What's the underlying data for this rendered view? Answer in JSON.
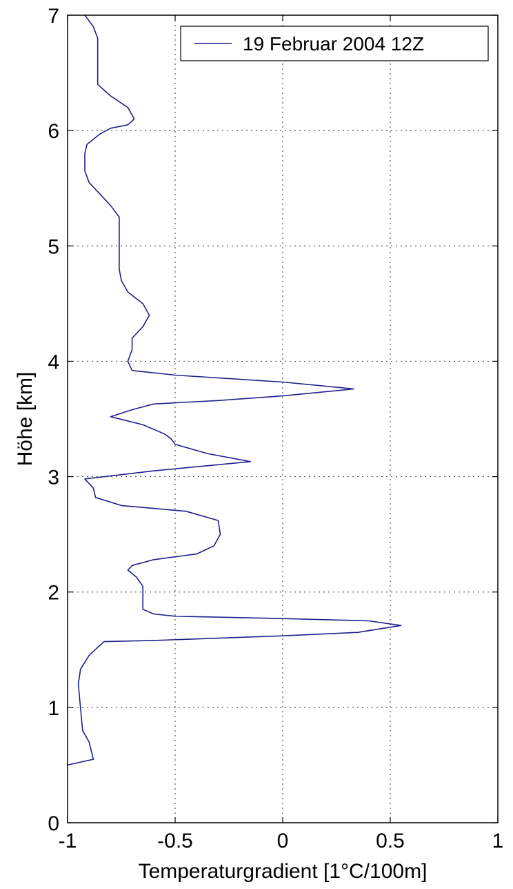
{
  "chart_data": {
    "type": "line",
    "title": "",
    "xlabel": "Temperaturgradient [1°C/100m]",
    "ylabel": "Höhe [km]",
    "xlim": [
      -1,
      1
    ],
    "ylim": [
      0,
      7
    ],
    "xticks": [
      -1,
      -0.5,
      0,
      0.5,
      1
    ],
    "xtick_labels": [
      "-1",
      "-0.5",
      "0",
      "0.5",
      "1"
    ],
    "yticks": [
      0,
      1,
      2,
      3,
      4,
      5,
      6,
      7
    ],
    "ytick_labels": [
      "0",
      "1",
      "2",
      "3",
      "4",
      "5",
      "6",
      "7"
    ],
    "grid": true,
    "legend_position": "top-right",
    "series": [
      {
        "name": "19 Februar 2004 12Z",
        "color": "#1e1e8c",
        "points": [
          [
            -1.0,
            0.5
          ],
          [
            -0.88,
            0.55
          ],
          [
            -0.9,
            0.7
          ],
          [
            -0.93,
            0.8
          ],
          [
            -0.94,
            1.0
          ],
          [
            -0.95,
            1.2
          ],
          [
            -0.94,
            1.33
          ],
          [
            -0.9,
            1.45
          ],
          [
            -0.86,
            1.52
          ],
          [
            -0.83,
            1.57
          ],
          [
            -0.6,
            1.58
          ],
          [
            0.0,
            1.62
          ],
          [
            0.35,
            1.65
          ],
          [
            0.55,
            1.71
          ],
          [
            0.4,
            1.75
          ],
          [
            0.0,
            1.77
          ],
          [
            -0.5,
            1.79
          ],
          [
            -0.6,
            1.81
          ],
          [
            -0.65,
            1.85
          ],
          [
            -0.65,
            1.95
          ],
          [
            -0.65,
            2.05
          ],
          [
            -0.68,
            2.13
          ],
          [
            -0.72,
            2.19
          ],
          [
            -0.7,
            2.23
          ],
          [
            -0.6,
            2.28
          ],
          [
            -0.4,
            2.33
          ],
          [
            -0.32,
            2.4
          ],
          [
            -0.29,
            2.5
          ],
          [
            -0.3,
            2.62
          ],
          [
            -0.45,
            2.7
          ],
          [
            -0.75,
            2.75
          ],
          [
            -0.87,
            2.82
          ],
          [
            -0.88,
            2.9
          ],
          [
            -0.92,
            2.98
          ],
          [
            -0.6,
            3.05
          ],
          [
            -0.15,
            3.13
          ],
          [
            -0.35,
            3.2
          ],
          [
            -0.5,
            3.28
          ],
          [
            -0.52,
            3.33
          ],
          [
            -0.55,
            3.37
          ],
          [
            -0.65,
            3.45
          ],
          [
            -0.8,
            3.52
          ],
          [
            -0.7,
            3.58
          ],
          [
            -0.6,
            3.63
          ],
          [
            -0.3,
            3.66
          ],
          [
            0.0,
            3.7
          ],
          [
            0.33,
            3.76
          ],
          [
            0.0,
            3.82
          ],
          [
            -0.5,
            3.88
          ],
          [
            -0.7,
            3.92
          ],
          [
            -0.72,
            4.0
          ],
          [
            -0.7,
            4.1
          ],
          [
            -0.7,
            4.2
          ],
          [
            -0.65,
            4.3
          ],
          [
            -0.62,
            4.4
          ],
          [
            -0.65,
            4.5
          ],
          [
            -0.72,
            4.6
          ],
          [
            -0.75,
            4.7
          ],
          [
            -0.76,
            4.8
          ],
          [
            -0.76,
            5.0
          ],
          [
            -0.76,
            5.25
          ],
          [
            -0.8,
            5.35
          ],
          [
            -0.85,
            5.45
          ],
          [
            -0.9,
            5.55
          ],
          [
            -0.92,
            5.65
          ],
          [
            -0.92,
            5.8
          ],
          [
            -0.91,
            5.88
          ],
          [
            -0.85,
            5.97
          ],
          [
            -0.8,
            6.02
          ],
          [
            -0.72,
            6.05
          ],
          [
            -0.69,
            6.1
          ],
          [
            -0.72,
            6.2
          ],
          [
            -0.8,
            6.3
          ],
          [
            -0.86,
            6.4
          ],
          [
            -0.86,
            6.6
          ],
          [
            -0.86,
            6.8
          ],
          [
            -0.88,
            6.9
          ],
          [
            -0.92,
            7.0
          ]
        ]
      }
    ]
  }
}
